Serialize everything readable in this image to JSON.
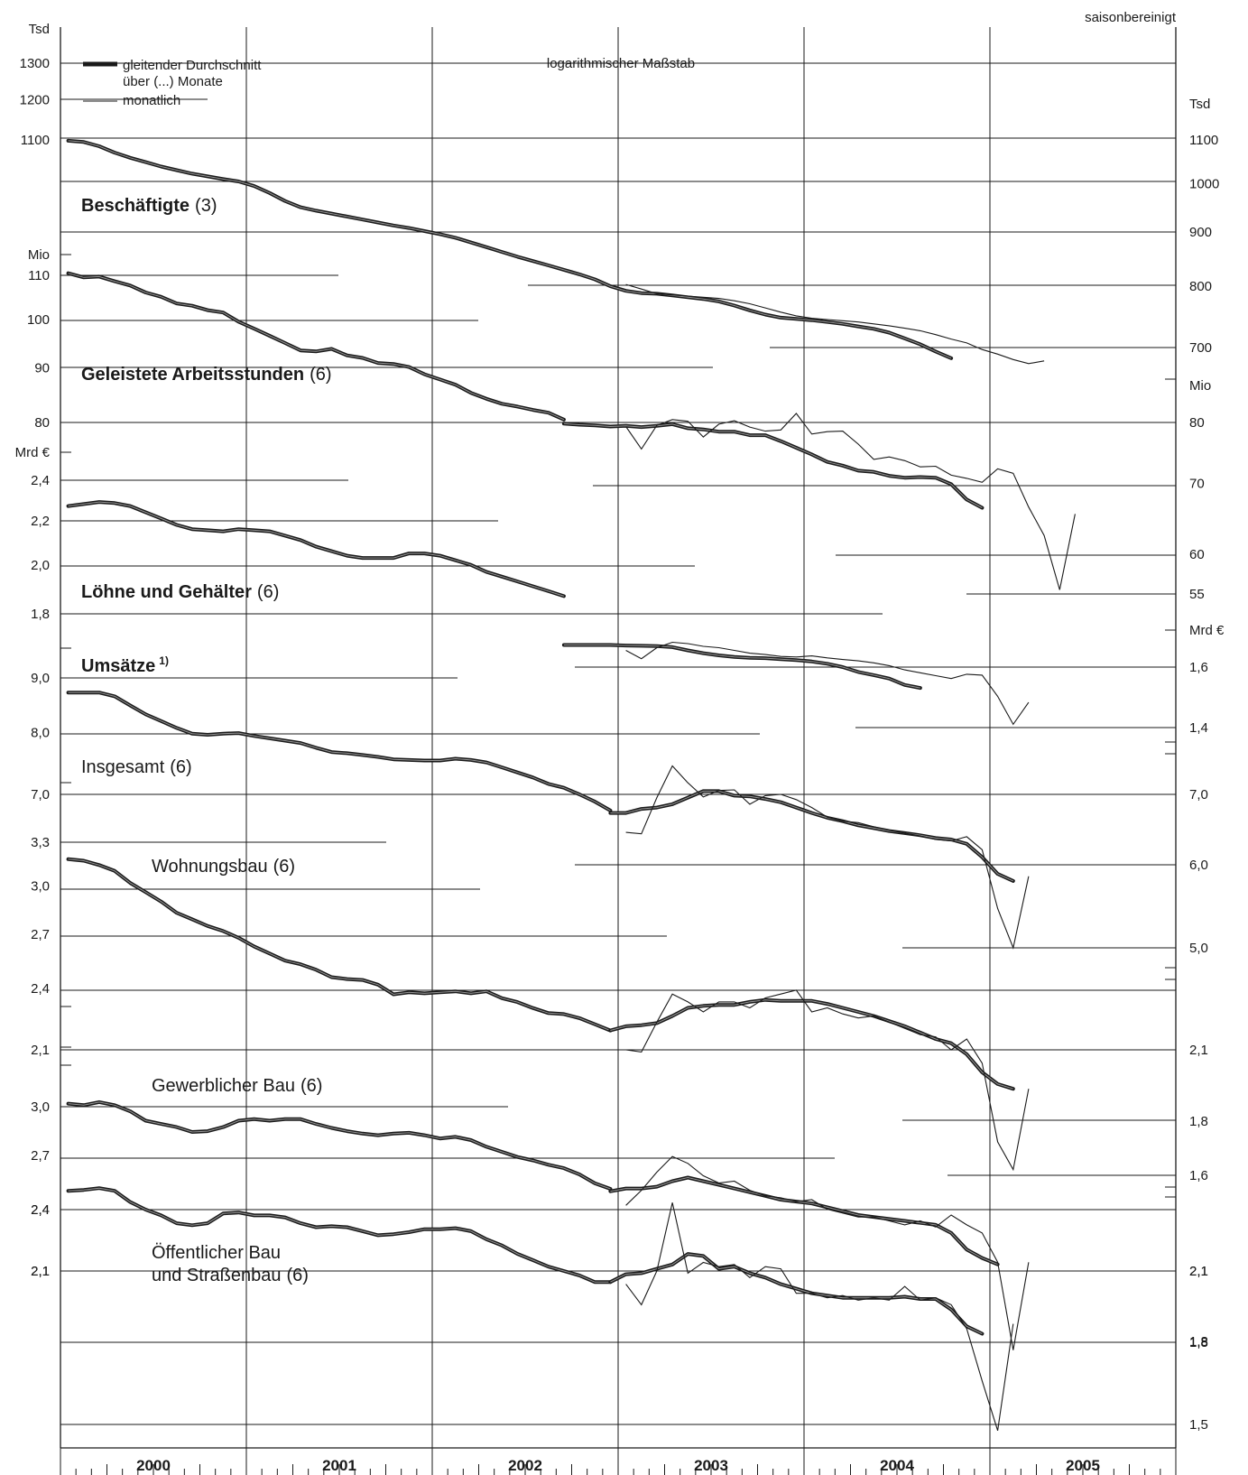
{
  "header": {
    "note": "saisonbereinigt"
  },
  "legend": {
    "average_label_line1": "gleitender Durchschnitt",
    "average_label_line2": "über (...) Monate",
    "monthly_label": "monatlich",
    "scale_label": "logarithmischer Maßstab"
  },
  "chart_data": {
    "type": "line",
    "x_axis": {
      "years": [
        "2000",
        "2001",
        "2002",
        "2003",
        "2004",
        "2005"
      ],
      "months_per_year": 12
    },
    "panels": [
      {
        "name": "Beschäftigte",
        "suffix": "(3)",
        "title_style": "bold",
        "axis_side": "right",
        "unit": "Tsd",
        "log_scale": true,
        "ticks": [
          "700",
          "800",
          "900",
          "1000",
          "1100",
          "1200",
          "1300"
        ],
        "ticks_left": [
          "1100",
          "1200",
          "1300"
        ],
        "unit_left": "Tsd",
        "series": [
          {
            "kind": "moving_average",
            "start": "2000-01",
            "values": [
              1098,
              1095,
              1085,
              1070,
              1058,
              1048,
              1038,
              1030,
              1022,
              1016,
              1010,
              1005,
              995,
              980,
              963,
              950,
              943,
              937,
              931,
              925,
              919,
              913,
              908,
              902,
              896,
              889,
              880,
              871,
              862,
              853,
              845,
              837,
              829,
              821,
              812,
              800,
              792,
              788,
              787,
              784,
              781,
              778,
              774,
              767,
              759,
              752,
              747,
              745,
              743,
              740,
              737,
              733,
              729,
              723,
              714,
              705,
              694,
              684
            ]
          },
          {
            "kind": "monthly",
            "start": "2003-01",
            "values": [
              803,
              795,
              787,
              785,
              783,
              781,
              779,
              775,
              770,
              763,
              756,
              750,
              746,
              744,
              742,
              740,
              737,
              734,
              730,
              726,
              720,
              713,
              707,
              697,
              690,
              682,
              676,
              680
            ]
          }
        ]
      },
      {
        "name": "Geleistete Arbeitsstunden",
        "suffix": "(6)",
        "title_style": "bold",
        "axis_side": "left",
        "unit": "Mio",
        "log_scale": true,
        "ticks": [
          "80",
          "90",
          "100",
          "110"
        ],
        "series": [
          {
            "kind": "moving_average",
            "start": "2000-01",
            "values": [
              110.5,
              109.5,
              109.7,
              108.6,
              107.6,
              106,
              105,
              103.5,
              103,
              102,
              101.5,
              99.5,
              98,
              96.5,
              95,
              93.5,
              93.3,
              93.8,
              92.5,
              92,
              91,
              90.8,
              90.2,
              88.8,
              87.8,
              86.8,
              85.3,
              84.2,
              83.3,
              82.8,
              82.2,
              81.7,
              80.5
            ]
          },
          {
            "kind": "moving_average",
            "start": "2002-09",
            "axis_side": "right",
            "ticks": [
              "55",
              "60",
              "70",
              "80"
            ],
            "unit": "Mio",
            "values": [
              79.8,
              79.6,
              79.5,
              79.3,
              79.4,
              79.2,
              79.4,
              79.7,
              79,
              78.8,
              78.4,
              78.4,
              77.8,
              77.8,
              76.8,
              75.7,
              74.6,
              73.4,
              72.8,
              72,
              71.8,
              71.2,
              70.9,
              71,
              70.9,
              69.9,
              67.6,
              66.4
            ]
          },
          {
            "kind": "monthly",
            "start": "2003-01",
            "values": [
              79.3,
              75.5,
              79.5,
              80.5,
              80.2,
              77.5,
              79.7,
              80.3,
              79.2,
              78.5,
              78.7,
              81.6,
              78,
              78.4,
              78.5,
              76.3,
              73.8,
              74.2,
              73.6,
              72.6,
              72.7,
              71.3,
              70.8,
              70.2,
              72.3,
              71.6,
              66.5,
              62.5,
              55.5,
              65.5
            ]
          }
        ]
      },
      {
        "name": "Löhne und Gehälter",
        "suffix": "(6)",
        "title_style": "bold",
        "axis_side": "left",
        "unit": "Mrd €",
        "log_scale": true,
        "ticks": [
          "1,8",
          "2,0",
          "2,2",
          "2,4"
        ],
        "series": [
          {
            "kind": "moving_average",
            "start": "2000-01",
            "values": [
              2.27,
              2.28,
              2.29,
              2.285,
              2.27,
              2.24,
              2.21,
              2.18,
              2.16,
              2.155,
              2.15,
              2.16,
              2.155,
              2.15,
              2.13,
              2.11,
              2.08,
              2.06,
              2.04,
              2.03,
              2.03,
              2.03,
              2.05,
              2.05,
              2.04,
              2.02,
              2,
              1.97,
              1.95,
              1.93,
              1.91,
              1.89,
              1.87
            ]
          },
          {
            "kind": "moving_average",
            "start": "2002-09",
            "axis_side": "right",
            "ticks": [
              "1,4",
              "1,6"
            ],
            "unit": "Mrd €",
            "values": [
              1.68,
              1.68,
              1.68,
              1.68,
              1.678,
              1.677,
              1.676,
              1.672,
              1.66,
              1.65,
              1.642,
              1.636,
              1.633,
              1.632,
              1.628,
              1.625,
              1.62,
              1.612,
              1.6,
              1.583,
              1.572,
              1.56,
              1.538,
              1.528
            ]
          },
          {
            "kind": "monthly",
            "start": "2003-01",
            "values": [
              1.66,
              1.63,
              1.67,
              1.69,
              1.685,
              1.675,
              1.67,
              1.66,
              1.65,
              1.645,
              1.638,
              1.636,
              1.64,
              1.633,
              1.627,
              1.622,
              1.615,
              1.605,
              1.59,
              1.58,
              1.57,
              1.56,
              1.575,
              1.572,
              1.5,
              1.41,
              1.48
            ]
          }
        ]
      },
      {
        "name": "Umsätze",
        "suffix": "1)",
        "title_style": "bold",
        "axis_side": "none",
        "series": []
      },
      {
        "name": "Insgesamt",
        "suffix": "(6)",
        "title_style": "regular",
        "axis_side": "left",
        "unit": "",
        "log_scale": true,
        "ticks": [
          "7,0",
          "8,0",
          "9,0"
        ],
        "series": [
          {
            "kind": "moving_average",
            "start": "2000-01",
            "values": [
              8.72,
              8.72,
              8.72,
              8.65,
              8.48,
              8.32,
              8.2,
              8.08,
              7.98,
              7.96,
              7.98,
              7.99,
              7.94,
              7.9,
              7.86,
              7.82,
              7.74,
              7.67,
              7.65,
              7.62,
              7.59,
              7.55,
              7.54,
              7.53,
              7.53,
              7.56,
              7.54,
              7.5,
              7.42,
              7.34,
              7.26,
              7.16,
              7.1,
              7,
              6.89,
              6.76
            ]
          },
          {
            "kind": "moving_average",
            "start": "2002-12",
            "axis_side": "right",
            "ticks": [
              "5,0",
              "6,0",
              "7,0"
            ],
            "unit": "",
            "values": [
              6.72,
              6.72,
              6.78,
              6.8,
              6.85,
              6.95,
              7.05,
              7.05,
              6.98,
              6.97,
              6.93,
              6.88,
              6.8,
              6.72,
              6.65,
              6.6,
              6.54,
              6.5,
              6.46,
              6.43,
              6.4,
              6.36,
              6.34,
              6.28,
              6.1,
              5.88,
              5.79
            ]
          },
          {
            "kind": "monthly",
            "start": "2003-01",
            "values": [
              6.44,
              6.42,
              6.95,
              7.45,
              7.18,
              6.96,
              7.06,
              7.07,
              6.85,
              6.98,
              7.0,
              6.92,
              6.8,
              6.66,
              6.6,
              6.58,
              6.52,
              6.47,
              6.43,
              6.39,
              6.34,
              6.32,
              6.38,
              6.2,
              5.45,
              5.0,
              5.85
            ]
          }
        ]
      },
      {
        "name": "Wohnungsbau",
        "suffix": "(6)",
        "title_style": "regular",
        "axis_side": "left",
        "unit": "",
        "log_scale": true,
        "ticks": [
          "2,1",
          "2,4",
          "2,7",
          "3,0",
          "3,3"
        ],
        "series": [
          {
            "kind": "moving_average",
            "start": "2000-01",
            "values": [
              3.18,
              3.17,
              3.14,
              3.1,
              3.02,
              2.96,
              2.9,
              2.83,
              2.79,
              2.75,
              2.72,
              2.68,
              2.63,
              2.59,
              2.55,
              2.53,
              2.5,
              2.46,
              2.45,
              2.445,
              2.42,
              2.37,
              2.38,
              2.375,
              2.38,
              2.385,
              2.375,
              2.385,
              2.35,
              2.33,
              2.3,
              2.275,
              2.27,
              2.25,
              2.22,
              2.19
            ]
          },
          {
            "kind": "moving_average",
            "start": "2002-12",
            "axis_side": "right",
            "ticks": [
              "1,6",
              "1,8",
              "2,1"
            ],
            "unit": "",
            "values": [
              2.19,
              2.21,
              2.215,
              2.225,
              2.26,
              2.3,
              2.31,
              2.315,
              2.315,
              2.33,
              2.34,
              2.335,
              2.335,
              2.335,
              2.32,
              2.3,
              2.28,
              2.26,
              2.235,
              2.21,
              2.18,
              2.15,
              2.13,
              2.08,
              2,
              1.95,
              1.93
            ]
          },
          {
            "kind": "monthly",
            "start": "2003-01",
            "values": [
              2.1,
              2.09,
              2.23,
              2.37,
              2.33,
              2.28,
              2.33,
              2.33,
              2.3,
              2.35,
              2.37,
              2.39,
              2.28,
              2.3,
              2.27,
              2.25,
              2.26,
              2.23,
              2.2,
              2.17,
              2.16,
              2.1,
              2.15,
              2.04,
              1.72,
              1.62,
              1.93
            ]
          }
        ]
      },
      {
        "name": "Gewerblicher Bau",
        "suffix": "(6)",
        "title_style": "regular",
        "axis_side": "left",
        "unit": "",
        "log_scale": true,
        "ticks": [
          "2,1",
          "2,4",
          "2,7",
          "3,0"
        ],
        "series": [
          {
            "kind": "moving_average",
            "start": "2000-01",
            "values": [
              3.02,
              3.01,
              3.03,
              3.01,
              2.97,
              2.91,
              2.89,
              2.87,
              2.84,
              2.845,
              2.87,
              2.91,
              2.92,
              2.91,
              2.92,
              2.92,
              2.89,
              2.865,
              2.845,
              2.83,
              2.82,
              2.83,
              2.835,
              2.82,
              2.8,
              2.81,
              2.79,
              2.75,
              2.72,
              2.69,
              2.67,
              2.645,
              2.625,
              2.59,
              2.54,
              2.51
            ]
          },
          {
            "kind": "moving_average",
            "start": "2002-12",
            "axis_side": "right",
            "ticks": [
              "1,8",
              "2,1"
            ],
            "unit": "",
            "values": [
              2.495,
              2.51,
              2.51,
              2.52,
              2.55,
              2.57,
              2.55,
              2.53,
              2.51,
              2.49,
              2.47,
              2.45,
              2.44,
              2.43,
              2.41,
              2.39,
              2.37,
              2.36,
              2.35,
              2.34,
              2.33,
              2.32,
              2.28,
              2.2,
              2.16,
              2.13
            ]
          },
          {
            "kind": "monthly",
            "start": "2003-01",
            "values": [
              2.42,
              2.5,
              2.6,
              2.69,
              2.65,
              2.58,
              2.54,
              2.55,
              2.5,
              2.47,
              2.46,
              2.44,
              2.45,
              2.4,
              2.38,
              2.36,
              2.36,
              2.34,
              2.32,
              2.34,
              2.31,
              2.37,
              2.32,
              2.28,
              2.14,
              1.77,
              2.14
            ]
          }
        ]
      },
      {
        "name": "Öffentlicher Bau",
        "name_line2": "und Straßenbau",
        "suffix": "(6)",
        "title_style": "regular",
        "axis_side": "left",
        "unit": "",
        "log_scale": true,
        "ticks": [
          "2,1",
          "2,4"
        ],
        "series": [
          {
            "kind": "moving_average",
            "start": "2000-01",
            "values": [
              2.5,
              2.505,
              2.515,
              2.5,
              2.44,
              2.4,
              2.37,
              2.33,
              2.32,
              2.33,
              2.38,
              2.385,
              2.37,
              2.37,
              2.36,
              2.33,
              2.31,
              2.315,
              2.31,
              2.29,
              2.27,
              2.275,
              2.285,
              2.3,
              2.3,
              2.305,
              2.29,
              2.25,
              2.22,
              2.18,
              2.15,
              2.12,
              2.1,
              2.08,
              2.05,
              2.05
            ]
          },
          {
            "kind": "moving_average",
            "start": "2002-12",
            "axis_side": "right",
            "ticks": [
              "1,5",
              "1,8",
              "2,1"
            ],
            "unit": "",
            "values": [
              2.05,
              2.085,
              2.09,
              2.11,
              2.13,
              2.18,
              2.17,
              2.11,
              2.12,
              2.09,
              2.07,
              2.04,
              2.02,
              2,
              1.99,
              1.98,
              1.98,
              1.98,
              1.98,
              1.985,
              1.975,
              1.975,
              1.93,
              1.86,
              1.83
            ]
          },
          {
            "kind": "monthly",
            "start": "2003-01",
            "values": [
              2.04,
              1.95,
              2.1,
              2.44,
              2.09,
              2.14,
              2.12,
              2.13,
              2.07,
              2.12,
              2.11,
              2.0,
              2.0,
              1.98,
              1.99,
              1.97,
              1.98,
              1.97,
              2.03,
              1.97,
              1.98,
              1.95,
              1.85,
              1.65,
              1.48,
              1.87
            ]
          }
        ]
      }
    ]
  }
}
